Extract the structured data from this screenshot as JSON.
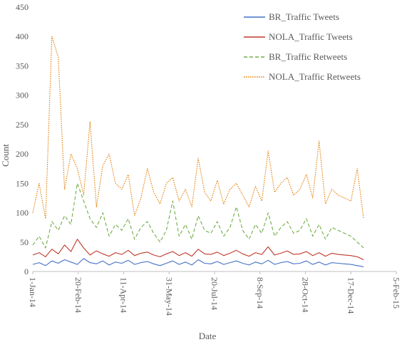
{
  "chart_data": {
    "type": "line",
    "title": "",
    "xlabel": "Date",
    "ylabel": "Count",
    "ylim": [
      0,
      450
    ],
    "yticks": [
      0,
      50,
      100,
      150,
      200,
      250,
      300,
      350,
      400,
      450
    ],
    "xlim": [
      "2014-01-01",
      "2015-02-05"
    ],
    "xticks": [
      {
        "date": "2014-01-01",
        "label": "1-Jan-14"
      },
      {
        "date": "2014-02-20",
        "label": "20-Feb-14"
      },
      {
        "date": "2014-04-11",
        "label": "11-Apr-14"
      },
      {
        "date": "2014-05-31",
        "label": "31-May-14"
      },
      {
        "date": "2014-07-20",
        "label": "20-Jul-14"
      },
      {
        "date": "2014-09-08",
        "label": "8-Sep-14"
      },
      {
        "date": "2014-10-28",
        "label": "28-Oct-14"
      },
      {
        "date": "2014-12-17",
        "label": "17-Dec-14"
      },
      {
        "date": "2015-02-05",
        "label": "5-Feb-15"
      }
    ],
    "grid": false,
    "legend_position": "top-right",
    "series": [
      {
        "name": "BR_Traffic Tweets",
        "color": "#4472C4",
        "dash": "solid",
        "x_start": "2014-01-01",
        "step_days": 7,
        "values": [
          12,
          15,
          10,
          18,
          14,
          20,
          16,
          12,
          22,
          15,
          13,
          18,
          11,
          16,
          14,
          19,
          12,
          15,
          17,
          13,
          10,
          14,
          18,
          12,
          16,
          11,
          20,
          14,
          13,
          17,
          12,
          15,
          18,
          14,
          11,
          16,
          13,
          19,
          12,
          15,
          17,
          13,
          14,
          18,
          12,
          16,
          11,
          15,
          14,
          13,
          12,
          10,
          8
        ]
      },
      {
        "name": "NOLA_Traffic Tweets",
        "color": "#C0392B",
        "dash": "solid",
        "x_start": "2014-01-01",
        "step_days": 7,
        "values": [
          28,
          32,
          25,
          38,
          30,
          45,
          34,
          55,
          40,
          28,
          35,
          30,
          26,
          32,
          29,
          36,
          27,
          31,
          33,
          28,
          25,
          30,
          34,
          27,
          32,
          26,
          38,
          30,
          29,
          33,
          27,
          31,
          36,
          30,
          26,
          32,
          29,
          42,
          28,
          31,
          35,
          29,
          30,
          34,
          27,
          32,
          26,
          31,
          29,
          28,
          27,
          25,
          20
        ]
      },
      {
        "name": "BR_Traffic Retweets",
        "color": "#70AD47",
        "dash": "dashed",
        "x_start": "2014-01-01",
        "step_days": 7,
        "values": [
          45,
          60,
          40,
          85,
          70,
          95,
          80,
          150,
          120,
          90,
          75,
          100,
          60,
          80,
          70,
          90,
          55,
          75,
          85,
          65,
          50,
          70,
          120,
          60,
          80,
          55,
          95,
          70,
          65,
          85,
          60,
          75,
          110,
          70,
          55,
          80,
          65,
          100,
          60,
          75,
          85,
          65,
          70,
          90,
          60,
          80,
          55,
          75,
          70,
          65,
          60,
          50,
          40
        ]
      },
      {
        "name": "NOLA_Traffic Retweets",
        "color": "#E07B00",
        "dash": "dotted",
        "x_start": "2014-01-01",
        "step_days": 7,
        "values": [
          100,
          150,
          90,
          400,
          365,
          140,
          200,
          175,
          130,
          255,
          110,
          180,
          200,
          150,
          140,
          165,
          95,
          125,
          175,
          135,
          115,
          150,
          160,
          120,
          140,
          110,
          193,
          135,
          120,
          155,
          115,
          140,
          150,
          130,
          110,
          145,
          120,
          205,
          135,
          150,
          160,
          130,
          140,
          165,
          125,
          222,
          115,
          140,
          130,
          125,
          120,
          175,
          90
        ]
      }
    ]
  }
}
